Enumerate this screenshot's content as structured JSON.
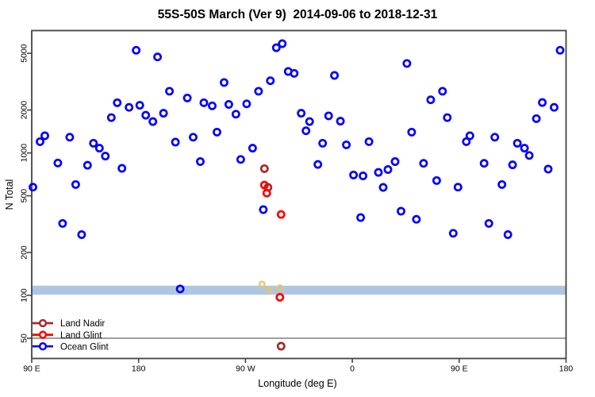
{
  "title": "55S-50S March (Ver 9)  2014-09-06 to 2018-12-31",
  "xlabel": "Longitude (deg E)",
  "ylabel": "N Total",
  "legend": {
    "items": [
      {
        "label": "Land Nadir",
        "color": "#A52A2A"
      },
      {
        "label": "Land Glint",
        "color": "#FF0000"
      },
      {
        "label": "Ocean Glint",
        "color": "#0000FF"
      }
    ]
  },
  "chart_data": {
    "type": "scatter",
    "title": "55S-50S March (Ver 9)  2014-09-06 to 2018-12-31",
    "xlabel": "Longitude (deg E)",
    "ylabel": "N Total",
    "x_axis": {
      "range": [
        90,
        540
      ],
      "note": "longitude axis wraps eastward: 90E to 180 to 90W to 0 to 90E to 180",
      "ticks": [
        {
          "value": 90,
          "label": "90 E"
        },
        {
          "value": 180,
          "label": "180"
        },
        {
          "value": 270,
          "label": "90 W"
        },
        {
          "value": 360,
          "label": "0"
        },
        {
          "value": 450,
          "label": "90 E"
        },
        {
          "value": 540,
          "label": "180"
        }
      ]
    },
    "y_axis": {
      "scale": "log",
      "range": [
        36,
        7300
      ],
      "ticks": [
        {
          "value": 50,
          "label": "50"
        },
        {
          "value": 100,
          "label": "100"
        },
        {
          "value": 200,
          "label": "200"
        },
        {
          "value": 500,
          "label": "500"
        },
        {
          "value": 1000,
          "label": "1000"
        },
        {
          "value": 2000,
          "label": "2000"
        },
        {
          "value": 5000,
          "label": "5000"
        }
      ]
    },
    "reference_band": {
      "n_min": 101,
      "n_max": 117,
      "color": "#AEC6E2"
    },
    "reference_line": {
      "n": 50,
      "color": "#909090"
    },
    "gold_marks": {
      "color": "#E8C467",
      "points": [
        [
          284,
          120
        ],
        [
          290,
          109
        ],
        [
          299,
          113
        ]
      ]
    },
    "series": [
      {
        "name": "Land Nadir",
        "color": "#A52A2A",
        "points": [
          [
            286,
            776
          ],
          [
            289,
            573
          ],
          [
            300,
            44
          ]
        ]
      },
      {
        "name": "Land Glint",
        "color": "#FF0000",
        "points": [
          [
            286,
            595
          ],
          [
            288,
            522
          ],
          [
            300,
            370
          ],
          [
            299,
            97
          ]
        ]
      },
      {
        "name": "Ocean Glint",
        "color": "#0000FF",
        "points": [
          [
            91,
            575
          ],
          [
            97,
            1200
          ],
          [
            101,
            1320
          ],
          [
            112,
            850
          ],
          [
            116,
            320
          ],
          [
            122,
            1290
          ],
          [
            127,
            600
          ],
          [
            132,
            267
          ],
          [
            137,
            820
          ],
          [
            142,
            1170
          ],
          [
            147,
            1080
          ],
          [
            152,
            950
          ],
          [
            157,
            1770
          ],
          [
            162,
            2250
          ],
          [
            166,
            780
          ],
          [
            172,
            2090
          ],
          [
            178,
            5260
          ],
          [
            181,
            2160
          ],
          [
            186,
            1840
          ],
          [
            192,
            1660
          ],
          [
            196,
            4720
          ],
          [
            201,
            1900
          ],
          [
            206,
            2710
          ],
          [
            211,
            1190
          ],
          [
            215,
            111
          ],
          [
            221,
            2430
          ],
          [
            226,
            1290
          ],
          [
            232,
            870
          ],
          [
            235,
            2250
          ],
          [
            242,
            2140
          ],
          [
            246,
            1400
          ],
          [
            252,
            3120
          ],
          [
            256,
            2190
          ],
          [
            262,
            1870
          ],
          [
            266,
            900
          ],
          [
            271,
            2210
          ],
          [
            276,
            1080
          ],
          [
            281,
            2710
          ],
          [
            285,
            400
          ],
          [
            291,
            3210
          ],
          [
            296,
            5480
          ],
          [
            301,
            5850
          ],
          [
            306,
            3730
          ],
          [
            311,
            3620
          ],
          [
            317,
            1900
          ],
          [
            321,
            1430
          ],
          [
            324,
            1660
          ],
          [
            331,
            830
          ],
          [
            335,
            1170
          ],
          [
            340,
            1820
          ],
          [
            345,
            3500
          ],
          [
            350,
            1670
          ],
          [
            355,
            1140
          ],
          [
            361,
            700
          ],
          [
            367,
            352
          ],
          [
            369,
            690
          ],
          [
            374,
            1200
          ],
          [
            382,
            730
          ],
          [
            386,
            573
          ],
          [
            390,
            765
          ],
          [
            396,
            870
          ],
          [
            401,
            390
          ],
          [
            406,
            4250
          ],
          [
            410,
            1400
          ],
          [
            414,
            342
          ],
          [
            420,
            845
          ],
          [
            426,
            2360
          ],
          [
            431,
            640
          ],
          [
            436,
            2710
          ],
          [
            440,
            1770
          ],
          [
            445,
            273
          ],
          [
            449,
            575
          ],
          [
            456,
            1200
          ],
          [
            459,
            1320
          ],
          [
            471,
            845
          ],
          [
            475,
            320
          ],
          [
            480,
            1290
          ],
          [
            486,
            600
          ],
          [
            491,
            267
          ],
          [
            495,
            825
          ],
          [
            499,
            1170
          ],
          [
            505,
            1080
          ],
          [
            509,
            960
          ],
          [
            515,
            1740
          ],
          [
            520,
            2260
          ],
          [
            525,
            770
          ],
          [
            530,
            2090
          ],
          [
            535,
            5260
          ]
        ]
      }
    ]
  }
}
